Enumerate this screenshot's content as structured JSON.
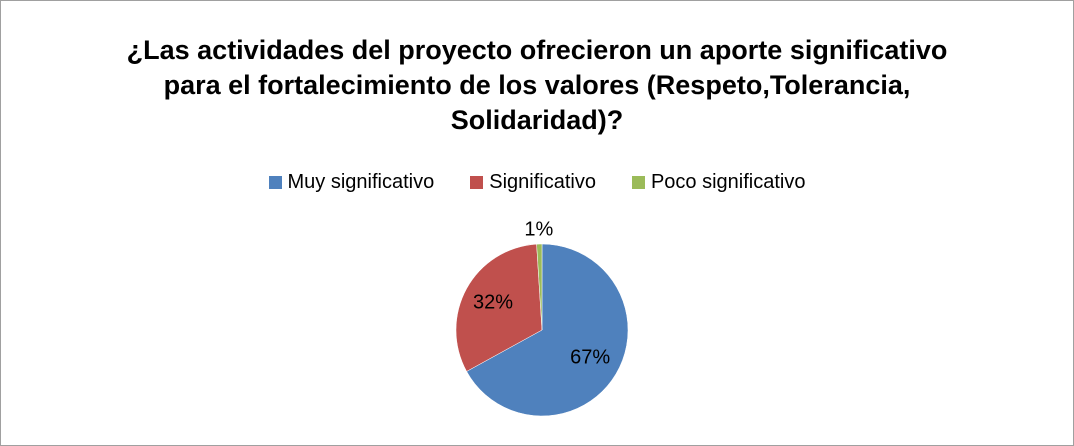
{
  "chart_data": {
    "type": "pie",
    "title": "¿Las actividades del proyecto ofrecieron un aporte significativo para el fortalecimiento de los valores (Respeto,Tolerancia, Solidaridad)?",
    "categories": [
      "Muy significativo",
      "Significativo",
      "Poco significativo"
    ],
    "values": [
      67,
      32,
      1
    ],
    "value_labels": [
      "67%",
      "32%",
      "1%"
    ],
    "colors": [
      "#4f81bd",
      "#c0504d",
      "#9bbb59"
    ],
    "legend": "top"
  }
}
